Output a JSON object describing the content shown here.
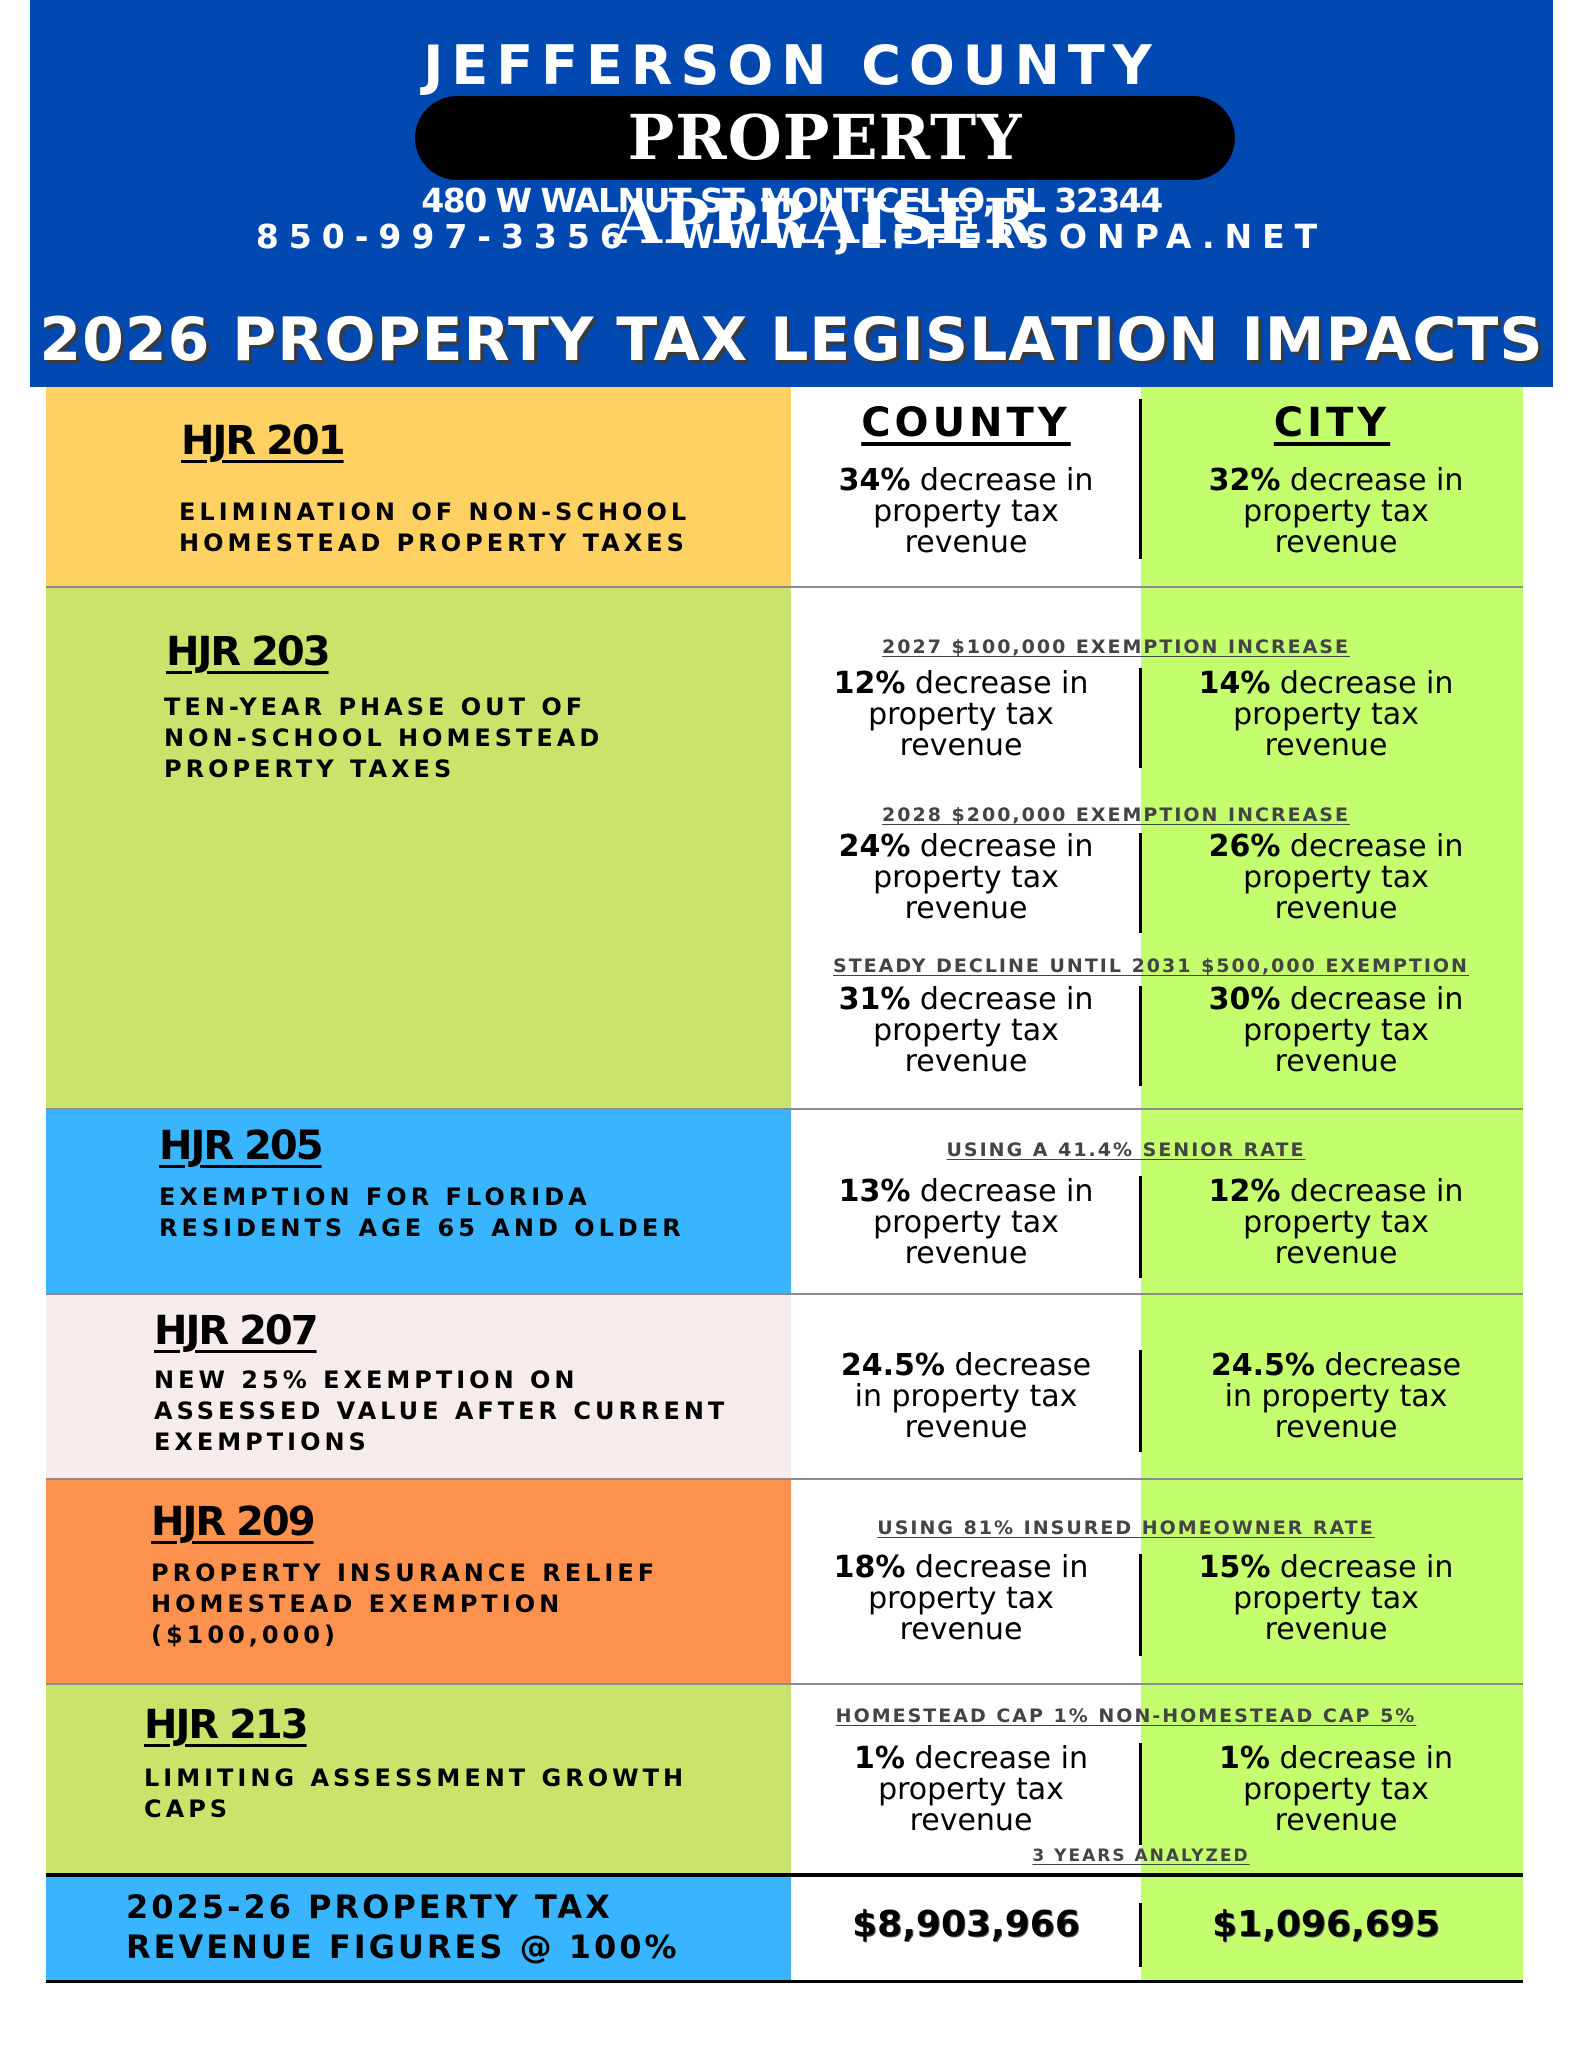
{
  "header": {
    "county": "JEFFERSON COUNTY",
    "office": "PROPERTY APPRAISER",
    "address": "480 W WALNUT ST, MONTICELLO, FL 32344",
    "phone": "850-997-3356",
    "website": "WWW.JEFFERSONPA.NET",
    "title": "2026 PROPERTY TAX LEGISLATION IMPACTS"
  },
  "columns": {
    "county": "COUNTY",
    "city": "CITY"
  },
  "colors": {
    "header_blue": "#0149b0",
    "hjr201": "#fed162",
    "hjr203": "#cae36a",
    "hjr205": "#39b4ff",
    "hjr207": "#f6ecec",
    "hjr209": "#fd914e",
    "hjr213": "#cae36a",
    "total": "#39b4ff",
    "city": "#c4fe6f"
  },
  "rows": [
    {
      "id": "HJR 201",
      "description": "ELIMINATION OF NON-SCHOOL\nHOMESTEAD PROPERTY TAXES",
      "blocks": [
        {
          "county_bold": "34%",
          "county_rest": " decrease in\nproperty tax\nrevenue",
          "city_bold": "32%",
          "city_rest": " decrease in\nproperty tax\nrevenue"
        }
      ]
    },
    {
      "id": "HJR 203",
      "description": "TEN-YEAR PHASE OUT OF\nNON-SCHOOL HOMESTEAD\nPROPERTY TAXES",
      "blocks": [
        {
          "note": "2027 $100,000 EXEMPTION INCREASE",
          "county_bold": "12%",
          "county_rest": " decrease in\nproperty tax\nrevenue",
          "city_bold": "14%",
          "city_rest": " decrease in\nproperty tax\nrevenue"
        },
        {
          "note": "2028 $200,000 EXEMPTION INCREASE",
          "county_bold": "24%",
          "county_rest": " decrease in\nproperty tax\nrevenue",
          "city_bold": "26%",
          "city_rest": " decrease in\nproperty tax\nrevenue"
        },
        {
          "note": "STEADY DECLINE UNTIL 2031  $500,000 EXEMPTION",
          "county_bold": "31%",
          "county_rest": " decrease in\nproperty tax\nrevenue",
          "city_bold": "30%",
          "city_rest": " decrease in\nproperty tax\nrevenue"
        }
      ]
    },
    {
      "id": "HJR 205",
      "description": "EXEMPTION FOR FLORIDA\nRESIDENTS AGE 65 AND OLDER",
      "blocks": [
        {
          "note": "USING A 41.4% SENIOR RATE",
          "county_bold": "13%",
          "county_rest": " decrease in\nproperty tax\nrevenue",
          "city_bold": "12%",
          "city_rest": " decrease in\nproperty tax\nrevenue"
        }
      ]
    },
    {
      "id": "HJR 207",
      "description": "NEW 25% EXEMPTION ON\nASSESSED VALUE AFTER CURRENT\nEXEMPTIONS",
      "blocks": [
        {
          "county_bold": "24.5%",
          "county_rest": " decrease\nin property tax\nrevenue",
          "city_bold": "24.5%",
          "city_rest": " decrease\nin property tax\nrevenue"
        }
      ]
    },
    {
      "id": "HJR 209",
      "description": "PROPERTY INSURANCE RELIEF\nHOMESTEAD EXEMPTION\n($100,000)",
      "blocks": [
        {
          "note": "USING 81% INSURED HOMEOWNER RATE",
          "county_bold": "18%",
          "county_rest": " decrease in\nproperty tax\nrevenue",
          "city_bold": "15%",
          "city_rest": " decrease in\nproperty tax\nrevenue"
        }
      ]
    },
    {
      "id": "HJR 213",
      "description": "LIMITING ASSESSMENT GROWTH\nCAPS",
      "blocks": [
        {
          "note": "HOMESTEAD CAP 1% NON-HOMESTEAD CAP 5%",
          "county_bold": "1%",
          "county_rest": " decrease in\nproperty tax\nrevenue",
          "city_bold": "1%",
          "city_rest": " decrease in\nproperty tax\nrevenue",
          "footnote": "3 YEARS ANALYZED"
        }
      ]
    }
  ],
  "totals": {
    "label": "2025-26 PROPERTY TAX\nREVENUE FIGURES @ 100%",
    "county": "$8,903,966",
    "city": "$1,096,695"
  }
}
